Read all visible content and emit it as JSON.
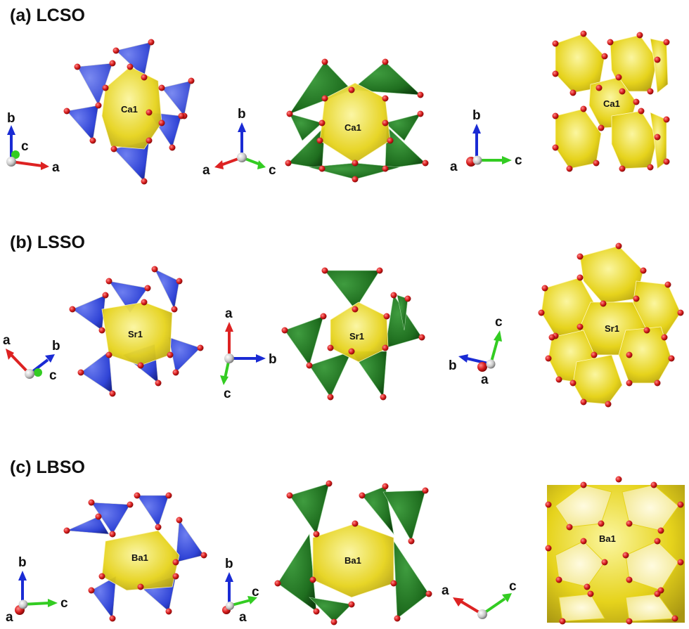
{
  "panels": [
    {
      "title": "(a) LCSO",
      "views": [
        {
          "site_label": "Ca1",
          "axes": {
            "up": "b",
            "right": "a",
            "out": "c"
          }
        },
        {
          "site_label": "Ca1",
          "axes": {
            "up": "b",
            "left": "a",
            "right": "c"
          }
        },
        {
          "site_label": "Ca1",
          "axes": {
            "up": "b",
            "out": "a",
            "right": "c"
          }
        }
      ]
    },
    {
      "title": "(b) LSSO",
      "views": [
        {
          "site_label": "Sr1",
          "axes": {
            "upleft": "a",
            "upright": "b",
            "down": "c"
          }
        },
        {
          "site_label": "Sr1",
          "axes": {
            "up": "a",
            "right": "b",
            "down": "c"
          }
        },
        {
          "site_label": "Sr1",
          "axes": {
            "up": "c",
            "left": "b",
            "out": "a"
          }
        }
      ]
    },
    {
      "title": "(c) LBSO",
      "views": [
        {
          "site_label": "Ba1",
          "axes": {
            "up": "b",
            "right": "c",
            "out": "a"
          }
        },
        {
          "site_label": "Ba1",
          "axes": {
            "up": "b",
            "right": "c",
            "out": "a"
          }
        },
        {
          "site_label": "Ba1",
          "axes": {
            "upleft": "a",
            "upright": "c"
          }
        }
      ]
    }
  ],
  "colors": {
    "yellow_polyhedron": "#e6d31c",
    "blue_tetrahedron": "#3044d6",
    "green_tetrahedron": "#1f7a1f",
    "oxygen_atom": "#d81e1e",
    "axis_red": "#dd2222",
    "axis_green": "#33cc22",
    "axis_blue": "#1a2bd4",
    "origin_atom": "#bdbdbd"
  }
}
